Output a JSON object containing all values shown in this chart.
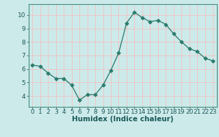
{
  "x": [
    0,
    1,
    2,
    3,
    4,
    5,
    6,
    7,
    8,
    9,
    10,
    11,
    12,
    13,
    14,
    15,
    16,
    17,
    18,
    19,
    20,
    21,
    22,
    23
  ],
  "y": [
    6.3,
    6.2,
    5.7,
    5.3,
    5.3,
    4.8,
    3.7,
    4.1,
    4.1,
    4.8,
    5.9,
    7.2,
    9.4,
    10.2,
    9.8,
    9.5,
    9.6,
    9.3,
    8.6,
    8.0,
    7.5,
    7.3,
    6.8,
    6.6
  ],
  "line_color": "#2e7d6e",
  "marker": "D",
  "marker_size": 2.5,
  "line_width": 1.0,
  "bg_color": "#cdeaea",
  "grid_color": "#f5bebe",
  "xlabel": "Humidex (Indice chaleur)",
  "xlabel_fontsize": 7.5,
  "tick_fontsize": 6.5,
  "xlim": [
    -0.5,
    23.5
  ],
  "ylim": [
    3.2,
    10.8
  ],
  "yticks": [
    4,
    5,
    6,
    7,
    8,
    9,
    10
  ],
  "xticks": [
    0,
    1,
    2,
    3,
    4,
    5,
    6,
    7,
    8,
    9,
    10,
    11,
    12,
    13,
    14,
    15,
    16,
    17,
    18,
    19,
    20,
    21,
    22,
    23
  ]
}
